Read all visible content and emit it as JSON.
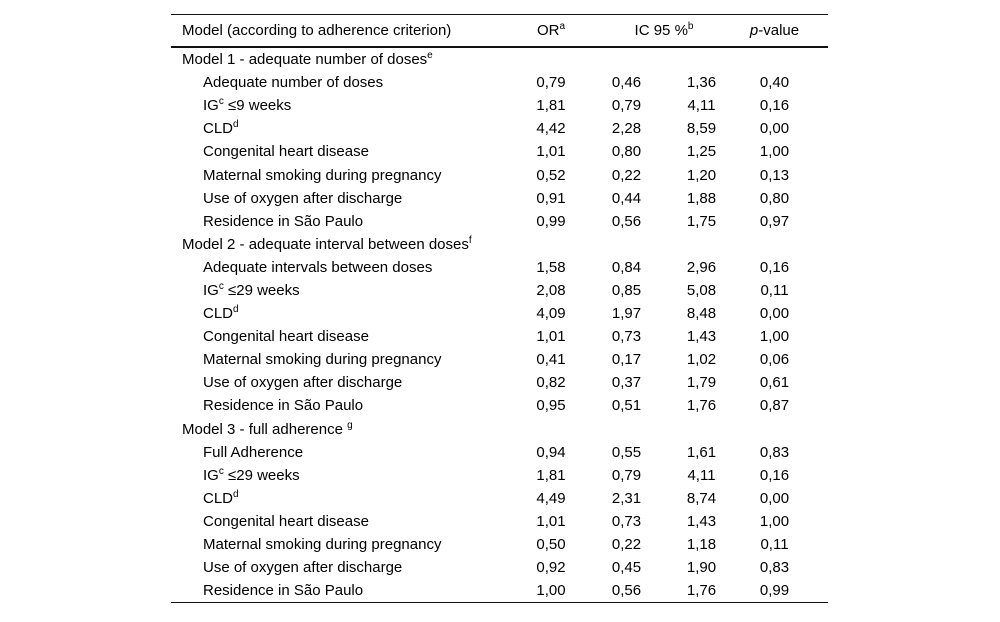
{
  "colors": {
    "background": "#ffffff",
    "text": "#000000",
    "rule": "#111111"
  },
  "table": {
    "columns": {
      "model": "Model (according to adherence criterion)",
      "or": {
        "text": "OR",
        "sup": "a"
      },
      "ic": {
        "text": "IC 95 %",
        "sup": "b"
      },
      "p": {
        "italic": "p",
        "rest": "-value"
      }
    },
    "sections": [
      {
        "title": "Model 1 - adequate number of doses",
        "title_sup": "e",
        "rows": [
          {
            "label_pre": "Adequate number of doses",
            "label_sup": "",
            "label_post": "",
            "or": "0,79",
            "ic_low": "0,46",
            "ic_high": "1,36",
            "p": "0,40"
          },
          {
            "label_pre": "IG",
            "label_sup": "c",
            "label_post": " ≤9 weeks",
            "or": "1,81",
            "ic_low": "0,79",
            "ic_high": "4,11",
            "p": "0,16"
          },
          {
            "label_pre": "CLD",
            "label_sup": "d",
            "label_post": "",
            "or": "4,42",
            "ic_low": "2,28",
            "ic_high": "8,59",
            "p": "0,00"
          },
          {
            "label_pre": "Congenital heart disease",
            "label_sup": "",
            "label_post": "",
            "or": "1,01",
            "ic_low": "0,80",
            "ic_high": "1,25",
            "p": "1,00"
          },
          {
            "label_pre": "Maternal smoking during pregnancy",
            "label_sup": "",
            "label_post": "",
            "or": "0,52",
            "ic_low": "0,22",
            "ic_high": "1,20",
            "p": "0,13"
          },
          {
            "label_pre": "Use of oxygen after discharge",
            "label_sup": "",
            "label_post": "",
            "or": "0,91",
            "ic_low": "0,44",
            "ic_high": "1,88",
            "p": "0,80"
          },
          {
            "label_pre": "Residence in São Paulo",
            "label_sup": "",
            "label_post": "",
            "or": "0,99",
            "ic_low": "0,56",
            "ic_high": "1,75",
            "p": "0,97"
          }
        ]
      },
      {
        "title": "Model 2 - adequate interval between doses",
        "title_sup": "f",
        "rows": [
          {
            "label_pre": "Adequate intervals between doses",
            "label_sup": "",
            "label_post": "",
            "or": "1,58",
            "ic_low": "0,84",
            "ic_high": "2,96",
            "p": "0,16"
          },
          {
            "label_pre": "IG",
            "label_sup": "c",
            "label_post": " ≤29 weeks",
            "or": "2,08",
            "ic_low": "0,85",
            "ic_high": "5,08",
            "p": "0,11"
          },
          {
            "label_pre": "CLD",
            "label_sup": "d",
            "label_post": "",
            "or": "4,09",
            "ic_low": "1,97",
            "ic_high": "8,48",
            "p": "0,00"
          },
          {
            "label_pre": "Congenital heart disease",
            "label_sup": "",
            "label_post": "",
            "or": "1,01",
            "ic_low": "0,73",
            "ic_high": "1,43",
            "p": "1,00"
          },
          {
            "label_pre": "Maternal smoking during pregnancy",
            "label_sup": "",
            "label_post": "",
            "or": "0,41",
            "ic_low": "0,17",
            "ic_high": "1,02",
            "p": "0,06"
          },
          {
            "label_pre": "Use of oxygen after discharge",
            "label_sup": "",
            "label_post": "",
            "or": "0,82",
            "ic_low": "0,37",
            "ic_high": "1,79",
            "p": "0,61"
          },
          {
            "label_pre": "Residence in São Paulo",
            "label_sup": "",
            "label_post": "",
            "or": "0,95",
            "ic_low": "0,51",
            "ic_high": "1,76",
            "p": "0,87"
          }
        ]
      },
      {
        "title": "Model 3 - full adherence ",
        "title_sup": "g",
        "rows": [
          {
            "label_pre": "Full Adherence",
            "label_sup": "",
            "label_post": "",
            "or": "0,94",
            "ic_low": "0,55",
            "ic_high": "1,61",
            "p": "0,83"
          },
          {
            "label_pre": "IG",
            "label_sup": "c",
            "label_post": " ≤29 weeks",
            "or": "1,81",
            "ic_low": "0,79",
            "ic_high": "4,11",
            "p": "0,16"
          },
          {
            "label_pre": "CLD",
            "label_sup": "d",
            "label_post": "",
            "or": "4,49",
            "ic_low": "2,31",
            "ic_high": "8,74",
            "p": "0,00"
          },
          {
            "label_pre": "Congenital heart disease",
            "label_sup": "",
            "label_post": "",
            "or": "1,01",
            "ic_low": "0,73",
            "ic_high": "1,43",
            "p": "1,00"
          },
          {
            "label_pre": "Maternal smoking during pregnancy",
            "label_sup": "",
            "label_post": "",
            "or": "0,50",
            "ic_low": "0,22",
            "ic_high": "1,18",
            "p": "0,11"
          },
          {
            "label_pre": "Use of oxygen after discharge",
            "label_sup": "",
            "label_post": "",
            "or": "0,92",
            "ic_low": "0,45",
            "ic_high": "1,90",
            "p": "0,83"
          },
          {
            "label_pre": "Residence in São Paulo",
            "label_sup": "",
            "label_post": "",
            "or": "1,00",
            "ic_low": "0,56",
            "ic_high": "1,76",
            "p": "0,99"
          }
        ]
      }
    ]
  }
}
